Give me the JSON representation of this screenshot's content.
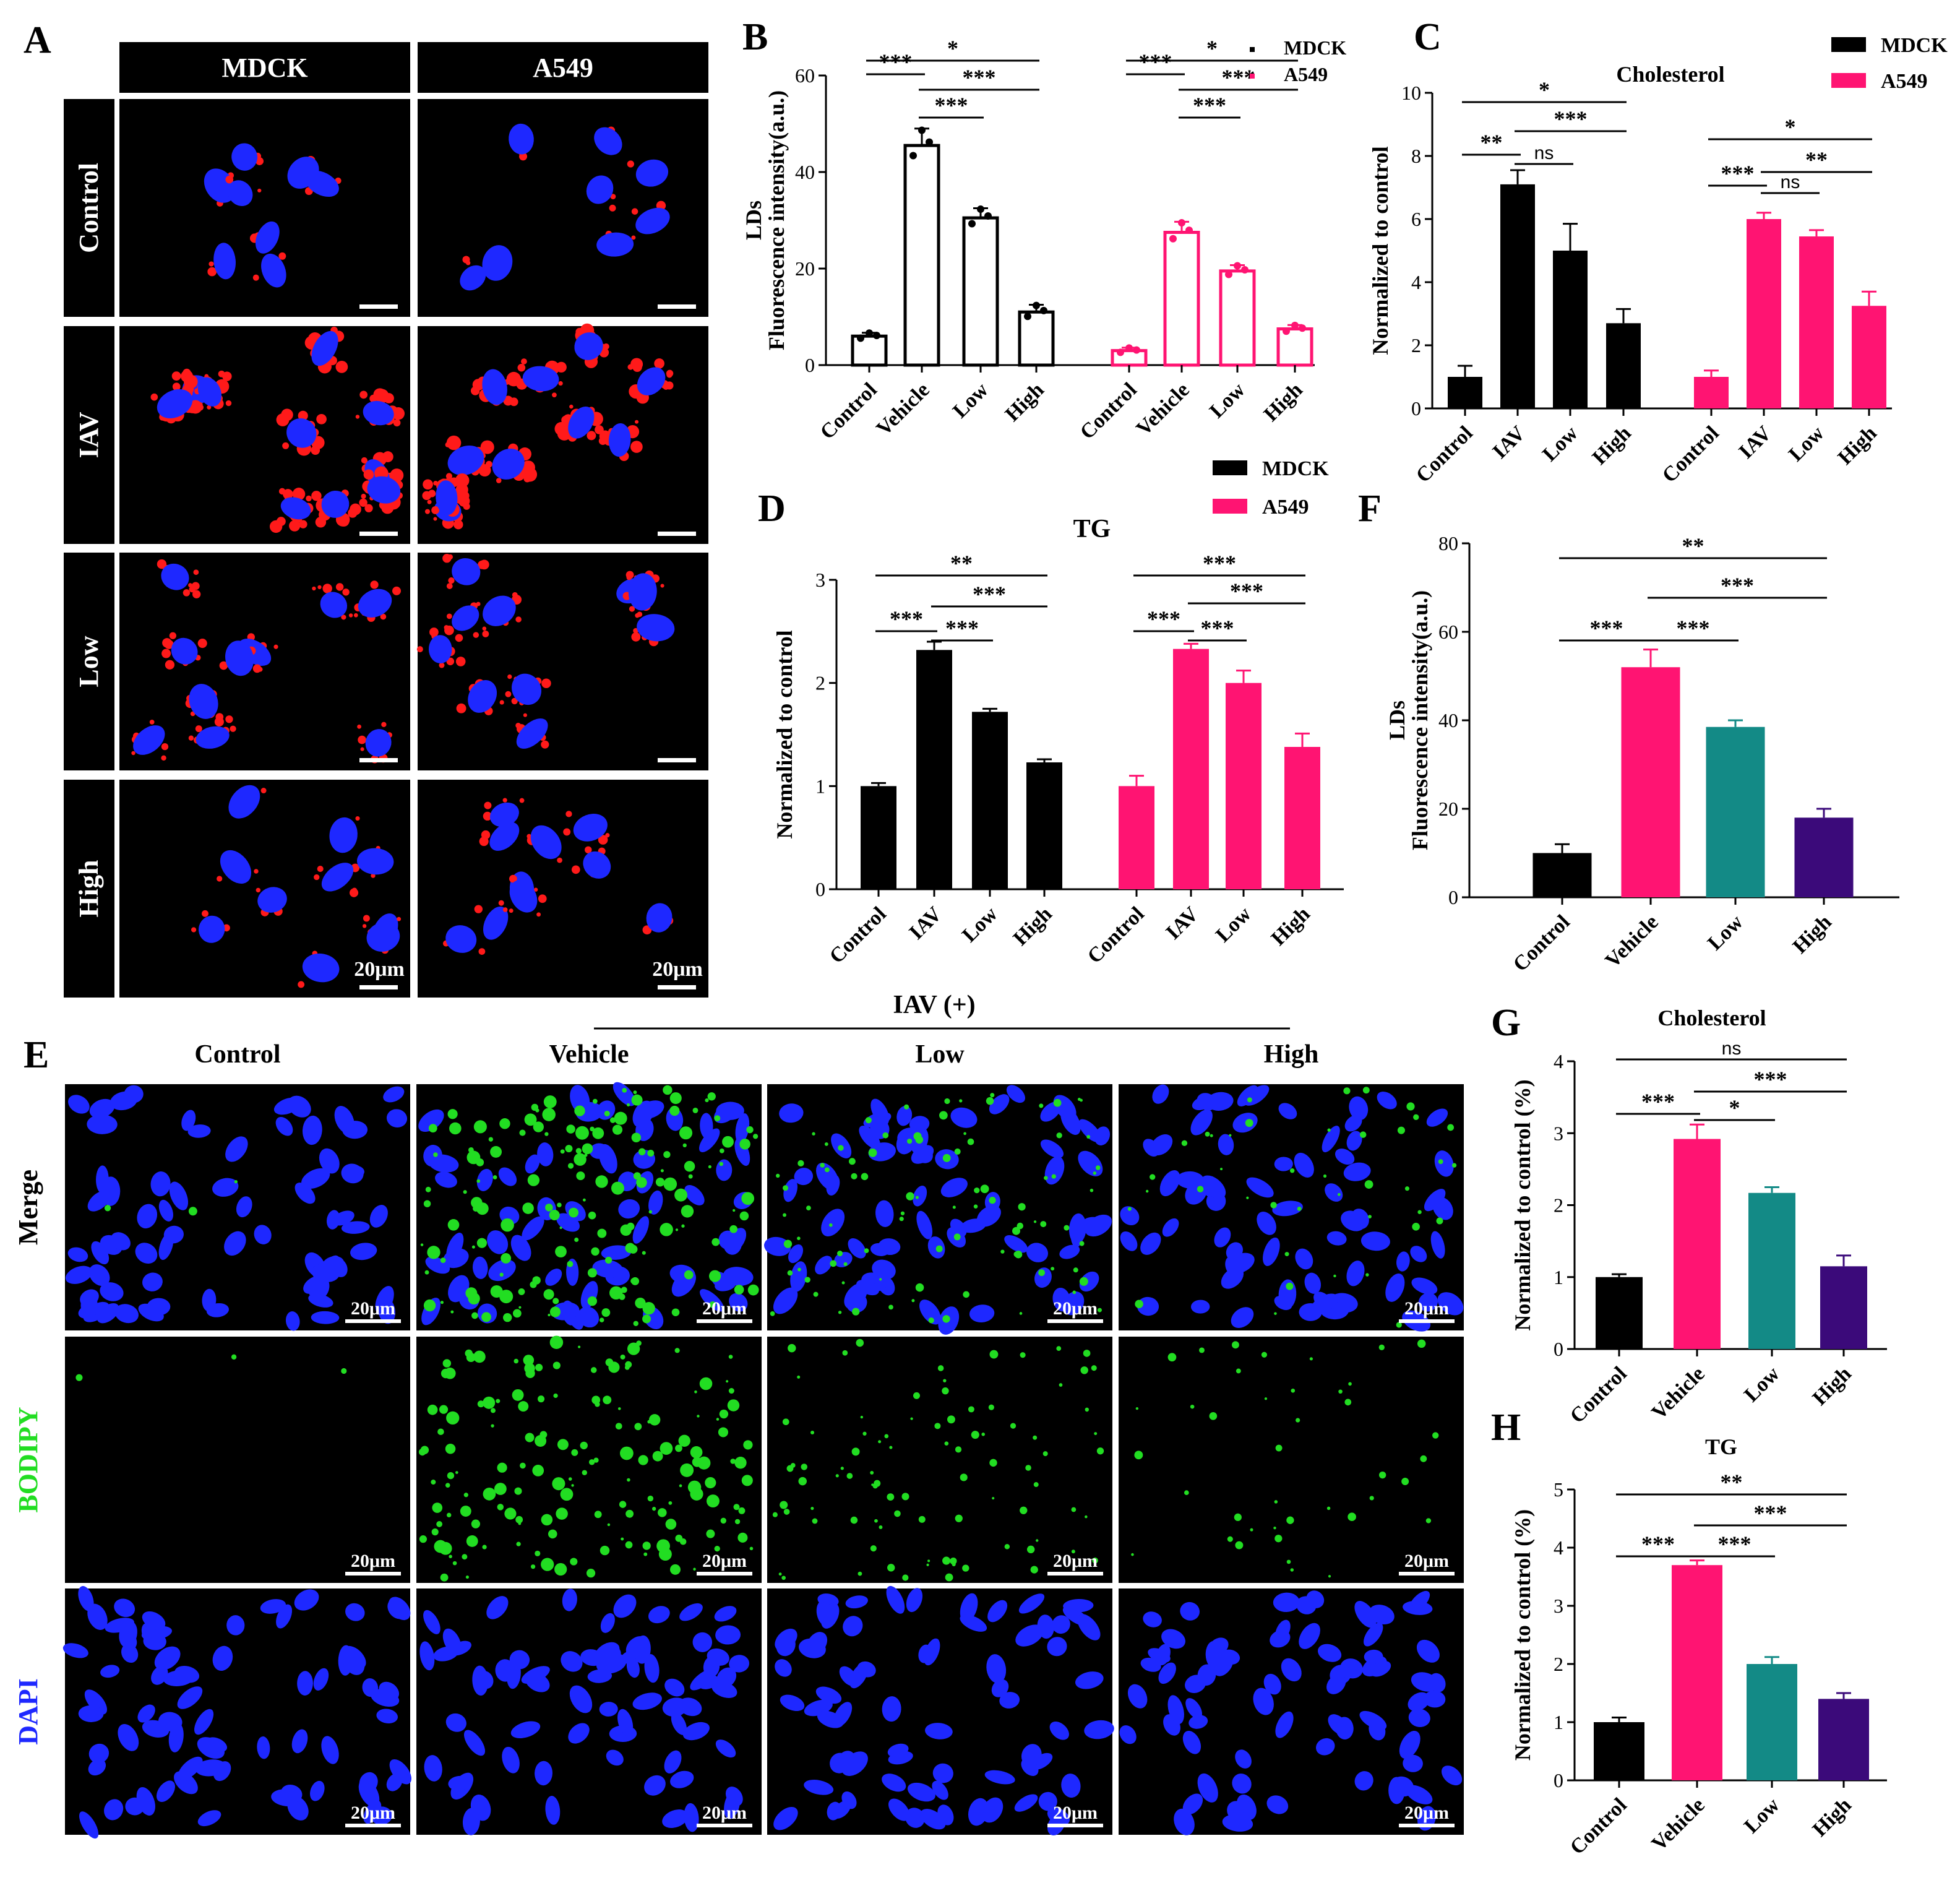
{
  "panel_labels": [
    "A",
    "B",
    "C",
    "D",
    "E",
    "F",
    "G",
    "H"
  ],
  "colors": {
    "mdck": "#000000",
    "a549": "#ff1472",
    "control": "#000000",
    "vehicle": "#ff1472",
    "low": "#138a86",
    "high": "#3b0a7a",
    "nucleus": "#1e28ff",
    "lipid_red": "#ff1a1a",
    "lipid_green": "#22dd22"
  },
  "panel_a": {
    "columns": [
      "MDCK",
      "A549"
    ],
    "rows": [
      "Control",
      "IAV",
      "Low",
      "High"
    ],
    "scale_bar": "20μm"
  },
  "panel_e": {
    "group_label": "IAV (+)",
    "columns": [
      "Control",
      "Vehicle",
      "Low",
      "High"
    ],
    "rows": [
      "Merge",
      "BODIPY",
      "DAPI"
    ],
    "scale_bar": "20μm"
  },
  "chart_data": [
    {
      "id": "B",
      "type": "bar",
      "title": "",
      "ylabel": [
        "LDs",
        "Fluorescence intensity(a.u.)"
      ],
      "ylim": [
        0,
        60
      ],
      "yticks": [
        0,
        20,
        40,
        60
      ],
      "legend": {
        "placement": "top-right",
        "style": "dot",
        "entries": [
          "MDCK",
          "A549"
        ]
      },
      "filled": false,
      "groups": [
        {
          "name": "MDCK",
          "categories": [
            "Control",
            "Vehicle",
            "Low",
            "High"
          ],
          "values": [
            6,
            45.5,
            30.5,
            11
          ],
          "errors": [
            0.7,
            3.5,
            2,
            1.5
          ]
        },
        {
          "name": "A549",
          "categories": [
            "Control",
            "Vehicle",
            "Low",
            "High"
          ],
          "values": [
            3,
            27.5,
            19.5,
            7.5
          ],
          "errors": [
            0.6,
            2.2,
            1.2,
            0.8
          ]
        }
      ],
      "significance": [
        {
          "group": 0,
          "from": 0,
          "to": 3,
          "label": "*"
        },
        {
          "group": 0,
          "from": 1,
          "to": 3,
          "label": "***"
        },
        {
          "group": 0,
          "from": 0,
          "to": 1,
          "label": "***"
        },
        {
          "group": 0,
          "from": 1,
          "to": 2,
          "label": "***"
        },
        {
          "group": 1,
          "from": 0,
          "to": 3,
          "label": "*"
        },
        {
          "group": 1,
          "from": 1,
          "to": 3,
          "label": "***"
        },
        {
          "group": 1,
          "from": 0,
          "to": 1,
          "label": "***"
        },
        {
          "group": 1,
          "from": 1,
          "to": 2,
          "label": "***"
        }
      ]
    },
    {
      "id": "C",
      "type": "bar",
      "title": "Cholesterol",
      "ylabel": [
        "Normalized to control"
      ],
      "ylim": [
        0,
        10
      ],
      "yticks": [
        0,
        2,
        4,
        6,
        8,
        10
      ],
      "legend": {
        "placement": "top-right",
        "style": "box",
        "entries": [
          "MDCK",
          "A549"
        ]
      },
      "filled": true,
      "groups": [
        {
          "name": "MDCK",
          "categories": [
            "Control",
            "IAV",
            "Low",
            "High"
          ],
          "values": [
            1,
            7.1,
            5,
            2.7
          ],
          "errors": [
            0.35,
            0.45,
            0.85,
            0.45
          ]
        },
        {
          "name": "A549",
          "categories": [
            "Control",
            "IAV",
            "Low",
            "High"
          ],
          "values": [
            1,
            6,
            5.45,
            3.25
          ],
          "errors": [
            0.2,
            0.2,
            0.2,
            0.45
          ]
        }
      ],
      "significance": [
        {
          "group": 0,
          "from": 0,
          "to": 3,
          "label": "*"
        },
        {
          "group": 0,
          "from": 1,
          "to": 3,
          "label": "***"
        },
        {
          "group": 0,
          "from": 0,
          "to": 1,
          "label": "**"
        },
        {
          "group": 0,
          "from": 1,
          "to": 2,
          "label": "ns"
        },
        {
          "group": 1,
          "from": 0,
          "to": 3,
          "label": "*"
        },
        {
          "group": 1,
          "from": 1,
          "to": 3,
          "label": "**"
        },
        {
          "group": 1,
          "from": 0,
          "to": 1,
          "label": "***"
        },
        {
          "group": 1,
          "from": 1,
          "to": 2,
          "label": "ns"
        }
      ]
    },
    {
      "id": "D",
      "type": "bar",
      "title": "TG",
      "ylabel": [
        "Normalized to control"
      ],
      "ylim": [
        0,
        3
      ],
      "yticks": [
        0,
        1,
        2,
        3
      ],
      "legend": {
        "placement": "top",
        "style": "box",
        "entries": [
          "MDCK",
          "A549"
        ]
      },
      "filled": true,
      "groups": [
        {
          "name": "MDCK",
          "categories": [
            "Control",
            "IAV",
            "Low",
            "High"
          ],
          "values": [
            1,
            2.32,
            1.72,
            1.23
          ],
          "errors": [
            0.03,
            0.08,
            0.03,
            0.03
          ]
        },
        {
          "name": "A549",
          "categories": [
            "Control",
            "IAV",
            "Low",
            "High"
          ],
          "values": [
            1,
            2.33,
            2,
            1.38
          ],
          "errors": [
            0.1,
            0.05,
            0.12,
            0.13
          ]
        }
      ],
      "significance": [
        {
          "group": 0,
          "from": 0,
          "to": 3,
          "label": "**"
        },
        {
          "group": 0,
          "from": 1,
          "to": 3,
          "label": "***"
        },
        {
          "group": 0,
          "from": 0,
          "to": 1,
          "label": "***"
        },
        {
          "group": 0,
          "from": 1,
          "to": 2,
          "label": "***"
        },
        {
          "group": 1,
          "from": 0,
          "to": 3,
          "label": "***"
        },
        {
          "group": 1,
          "from": 1,
          "to": 3,
          "label": "***"
        },
        {
          "group": 1,
          "from": 0,
          "to": 1,
          "label": "***"
        },
        {
          "group": 1,
          "from": 1,
          "to": 2,
          "label": "***"
        }
      ]
    },
    {
      "id": "F",
      "type": "bar",
      "title": "",
      "ylabel": [
        "LDs",
        "Fluorescence intensity(a.u.)"
      ],
      "ylim": [
        0,
        80
      ],
      "yticks": [
        0,
        20,
        40,
        60,
        80
      ],
      "filled": true,
      "groups": [
        {
          "categories": [
            "Control",
            "Vehicle",
            "Low",
            "High"
          ],
          "values": [
            10,
            52,
            38.5,
            18
          ],
          "errors": [
            2,
            4,
            1.5,
            2
          ]
        }
      ],
      "significance": [
        {
          "group": 0,
          "from": 0,
          "to": 3,
          "label": "**"
        },
        {
          "group": 0,
          "from": 1,
          "to": 3,
          "label": "***"
        },
        {
          "group": 0,
          "from": 0,
          "to": 1,
          "label": "***"
        },
        {
          "group": 0,
          "from": 1,
          "to": 2,
          "label": "***"
        }
      ]
    },
    {
      "id": "G",
      "type": "bar",
      "title": "Cholesterol",
      "ylabel": [
        "Normalized to control (%)"
      ],
      "ylim": [
        0,
        4
      ],
      "yticks": [
        0,
        1,
        2,
        3,
        4
      ],
      "filled": true,
      "groups": [
        {
          "categories": [
            "Control",
            "Vehicle",
            "Low",
            "High"
          ],
          "values": [
            1,
            2.92,
            2.17,
            1.15
          ],
          "errors": [
            0.04,
            0.2,
            0.08,
            0.15
          ]
        }
      ],
      "significance": [
        {
          "group": 0,
          "from": 0,
          "to": 3,
          "label": "ns"
        },
        {
          "group": 0,
          "from": 1,
          "to": 3,
          "label": "***"
        },
        {
          "group": 0,
          "from": 0,
          "to": 1,
          "label": "***"
        },
        {
          "group": 0,
          "from": 1,
          "to": 2,
          "label": "*"
        }
      ]
    },
    {
      "id": "H",
      "type": "bar",
      "title": "TG",
      "ylabel": [
        "Normalized to control (%)"
      ],
      "ylim": [
        0,
        5
      ],
      "yticks": [
        0,
        1,
        2,
        3,
        4,
        5
      ],
      "filled": true,
      "groups": [
        {
          "categories": [
            "Control",
            "Vehicle",
            "Low",
            "High"
          ],
          "values": [
            1,
            3.7,
            2,
            1.4
          ],
          "errors": [
            0.08,
            0.08,
            0.12,
            0.1
          ]
        }
      ],
      "significance": [
        {
          "group": 0,
          "from": 0,
          "to": 3,
          "label": "**"
        },
        {
          "group": 0,
          "from": 1,
          "to": 3,
          "label": "***"
        },
        {
          "group": 0,
          "from": 0,
          "to": 1,
          "label": "***"
        },
        {
          "group": 0,
          "from": 1,
          "to": 2,
          "label": "***"
        }
      ]
    }
  ]
}
